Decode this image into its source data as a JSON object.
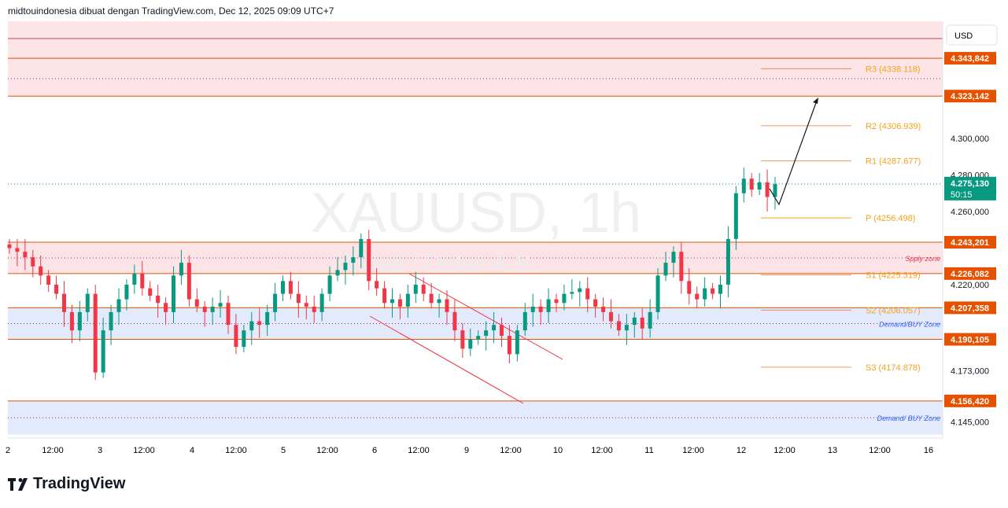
{
  "header": {
    "title": "midtouindonesia dibuat dengan TradingView.com, Dec 12, 2025 09:09 UTC+7"
  },
  "watermark": {
    "symbol": "XAUUSD, 1h",
    "description": "Emas / Dollar A.S."
  },
  "price_axis": {
    "currency": "USD",
    "ticks": [
      4300,
      4280,
      4260,
      4220,
      4173,
      4145
    ],
    "tick_labels": [
      "4.300,000",
      "4.280,000",
      "4.260,000",
      "4.220,000",
      "4.173,000",
      "4.145,000"
    ]
  },
  "current_price": {
    "label": "4.275,130",
    "countdown": "50:15",
    "value": 4275.13,
    "color": "#089981"
  },
  "levels": [
    {
      "value": 4343.842,
      "label": "4.343,842"
    },
    {
      "value": 4323.142,
      "label": "4.323,142"
    },
    {
      "value": 4243.201,
      "label": "4.243,201"
    },
    {
      "value": 4226.082,
      "label": "4.226,082"
    },
    {
      "value": 4207.358,
      "label": "4.207,358"
    },
    {
      "value": 4190.105,
      "label": "4.190,105"
    },
    {
      "value": 4156.42,
      "label": "4.156,420"
    }
  ],
  "pivots": [
    {
      "value": 4338.118,
      "label": "R3 (4338.118)"
    },
    {
      "value": 4306.939,
      "label": "R2 (4306.939)"
    },
    {
      "value": 4287.677,
      "label": "R1 (4287.677)"
    },
    {
      "value": 4256.498,
      "label": "P (4256.498)"
    },
    {
      "value": 4225.319,
      "label": "S1 (4225.319)"
    },
    {
      "value": 4206.057,
      "label": "S2 (4206.057)"
    },
    {
      "value": 4174.878,
      "label": "S3 (4174.878)"
    }
  ],
  "zones": [
    {
      "label": "Spply zone",
      "top": 4243.201,
      "bottom": 4226.082,
      "color": "#fce4e7",
      "text_color": "#f23645"
    },
    {
      "label": "Demand/BUY Zone",
      "top": 4207.358,
      "bottom": 4190.105,
      "color": "#e3eafc",
      "text_color": "#2962ff"
    },
    {
      "label": "Demand/ BUY Zone",
      "top": 4156.42,
      "bottom": 4138,
      "color": "#e3eafc",
      "text_color": "#2962ff"
    }
  ],
  "time_axis": [
    "2",
    "12:00",
    "3",
    "12:00",
    "4",
    "12:00",
    "5",
    "12:00",
    "6",
    "12:00",
    "9",
    "12:00",
    "10",
    "12:00",
    "11",
    "12:00",
    "12",
    "12:00",
    "13",
    "12:00",
    "16"
  ],
  "colors": {
    "up": "#089981",
    "down": "#f23645",
    "level": "#e65100",
    "pivot": "#f7a21b"
  },
  "chart_data": {
    "type": "candlestick",
    "title": "XAUUSD, 1h",
    "closes": [
      4240,
      4238,
      4235,
      4230,
      4225,
      4220,
      4215,
      4205,
      4195,
      4205,
      4215,
      4172,
      4195,
      4205,
      4212,
      4220,
      4226,
      4218,
      4214,
      4210,
      4205,
      4225,
      4232,
      4212,
      4208,
      4205,
      4208,
      4210,
      4198,
      4186,
      4195,
      4200,
      4198,
      4205,
      4215,
      4222,
      4215,
      4210,
      4208,
      4205,
      4215,
      4225,
      4228,
      4232,
      4235,
      4245,
      4222,
      4218,
      4210,
      4212,
      4208,
      4215,
      4220,
      4215,
      4210,
      4212,
      4205,
      4195,
      4185,
      4190,
      4192,
      4195,
      4198,
      4192,
      4182,
      4195,
      4205,
      4208,
      4205,
      4212,
      4210,
      4215,
      4216,
      4218,
      4212,
      4208,
      4205,
      4200,
      4195,
      4198,
      4202,
      4196,
      4205,
      4225,
      4232,
      4238,
      4222,
      4215,
      4212,
      4218,
      4215,
      4220,
      4245,
      4270,
      4278,
      4272,
      4276,
      4268,
      4275
    ]
  },
  "brand": {
    "name": "TradingView"
  }
}
